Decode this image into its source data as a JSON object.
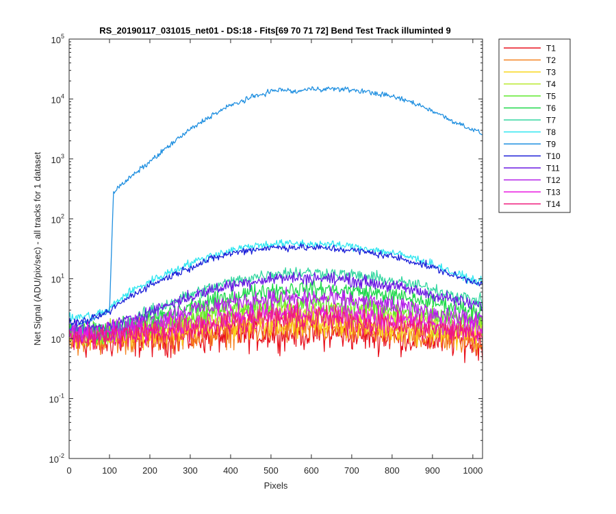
{
  "chart_data": {
    "type": "line",
    "title": "RS_20190117_031015_net01 - DS:18 - Fits[69  70  71  72]   Bend Test       Track illuminted 9",
    "xlabel": "Pixels",
    "ylabel": "Net Signal (ADU/pix/sec) - all tracks for 1 dataset",
    "xlim": [
      0,
      1024
    ],
    "ylim": [
      0.01,
      100000
    ],
    "yscale": "log",
    "x_ticks": [
      "0",
      "100",
      "200",
      "300",
      "400",
      "500",
      "600",
      "700",
      "800",
      "900",
      "1000"
    ],
    "y_ticks": [
      {
        "base": "10",
        "exp": "-2"
      },
      {
        "base": "10",
        "exp": "-1"
      },
      {
        "base": "10",
        "exp": "0"
      },
      {
        "base": "10",
        "exp": "1"
      },
      {
        "base": "10",
        "exp": "2"
      },
      {
        "base": "10",
        "exp": "3"
      },
      {
        "base": "10",
        "exp": "4"
      },
      {
        "base": "10",
        "exp": "5"
      }
    ],
    "grid": false,
    "legend_position": "outside-top-right",
    "x": [
      0,
      50,
      100,
      110,
      150,
      200,
      250,
      300,
      350,
      400,
      450,
      500,
      530,
      550,
      560,
      600,
      650,
      700,
      750,
      800,
      850,
      900,
      930,
      950,
      1000,
      1024
    ],
    "series": [
      {
        "name": "T1",
        "color": "#e8121e",
        "noise": 0.3,
        "values": [
          0.85,
          0.85,
          0.87,
          0.87,
          0.9,
          0.92,
          0.96,
          1.0,
          1.05,
          1.1,
          1.15,
          1.2,
          1.22,
          1.22,
          1.22,
          1.22,
          1.2,
          1.16,
          1.1,
          1.05,
          1.0,
          0.95,
          0.92,
          0.9,
          0.85,
          0.8
        ]
      },
      {
        "name": "T2",
        "color": "#f58220",
        "noise": 0.28,
        "values": [
          0.95,
          0.95,
          0.97,
          0.97,
          1.0,
          1.05,
          1.1,
          1.15,
          1.22,
          1.3,
          1.36,
          1.42,
          1.45,
          1.45,
          1.45,
          1.45,
          1.42,
          1.36,
          1.3,
          1.22,
          1.15,
          1.08,
          1.04,
          1.0,
          0.95,
          0.9
        ]
      },
      {
        "name": "T3",
        "color": "#f9d71c",
        "noise": 0.25,
        "values": [
          1.1,
          1.1,
          1.12,
          1.13,
          1.18,
          1.25,
          1.35,
          1.45,
          1.55,
          1.65,
          1.75,
          1.85,
          1.9,
          1.9,
          1.9,
          1.9,
          1.85,
          1.75,
          1.65,
          1.52,
          1.42,
          1.32,
          1.27,
          1.23,
          1.15,
          1.1
        ]
      },
      {
        "name": "T4",
        "color": "#b7e82a",
        "noise": 0.22,
        "values": [
          1.2,
          1.2,
          1.25,
          1.27,
          1.35,
          1.5,
          1.7,
          1.95,
          2.2,
          2.45,
          2.65,
          2.8,
          2.85,
          2.85,
          2.85,
          2.85,
          2.8,
          2.65,
          2.45,
          2.25,
          2.05,
          1.85,
          1.75,
          1.68,
          1.55,
          1.5
        ]
      },
      {
        "name": "T5",
        "color": "#5fe82d",
        "noise": 0.2,
        "values": [
          1.25,
          1.25,
          1.3,
          1.35,
          1.5,
          1.75,
          2.1,
          2.5,
          2.9,
          3.3,
          3.55,
          3.75,
          3.8,
          3.8,
          3.8,
          3.8,
          3.7,
          3.5,
          3.25,
          2.95,
          2.65,
          2.4,
          2.25,
          2.15,
          1.95,
          1.9
        ]
      },
      {
        "name": "T6",
        "color": "#1ed84a",
        "noise": 0.16,
        "values": [
          1.3,
          1.3,
          1.4,
          1.45,
          1.7,
          2.1,
          2.7,
          3.4,
          4.2,
          5.0,
          5.8,
          6.5,
          6.7,
          6.8,
          6.8,
          6.8,
          6.6,
          6.3,
          5.8,
          5.2,
          4.6,
          4.0,
          3.7,
          3.5,
          3.0,
          2.9
        ]
      },
      {
        "name": "T7",
        "color": "#33d6a0",
        "noise": 0.12,
        "values": [
          1.35,
          1.35,
          1.5,
          1.6,
          2.0,
          2.8,
          4.0,
          5.4,
          7.0,
          8.8,
          10.5,
          12.0,
          12.5,
          12.7,
          12.7,
          12.7,
          12.3,
          11.5,
          10.5,
          9.2,
          8.0,
          6.7,
          6.0,
          5.5,
          4.5,
          4.2
        ]
      },
      {
        "name": "T8",
        "color": "#2ee6f0",
        "noise": 0.08,
        "values": [
          2.2,
          2.4,
          3.0,
          3.8,
          6.0,
          9.0,
          13.0,
          18.0,
          24.0,
          30.0,
          35.0,
          38.0,
          38.5,
          38.5,
          38.5,
          38.0,
          37.0,
          34.5,
          31.0,
          27.0,
          22.5,
          17.5,
          14.5,
          12.5,
          9.5,
          8.8
        ]
      },
      {
        "name": "T9",
        "color": "#1f8fe0",
        "noise": 0.05,
        "values": [
          1.5,
          2.0,
          3.0,
          280,
          480,
          900,
          1700,
          3100,
          5200,
          7800,
          10500,
          13500,
          14300,
          13500,
          13100,
          14800,
          14800,
          14200,
          12800,
          11000,
          8800,
          6400,
          5000,
          4300,
          3100,
          2600
        ]
      },
      {
        "name": "T10",
        "color": "#1b1fd8",
        "noise": 0.07,
        "values": [
          1.8,
          2.0,
          2.8,
          3.3,
          5.0,
          7.8,
          11.0,
          15.5,
          21.0,
          26.5,
          30.5,
          33.0,
          33.5,
          33.5,
          33.5,
          33.0,
          32.0,
          30.0,
          27.0,
          23.5,
          19.5,
          15.5,
          13.0,
          11.5,
          9.0,
          8.5
        ]
      },
      {
        "name": "T11",
        "color": "#6a18e2",
        "noise": 0.12,
        "values": [
          1.4,
          1.45,
          1.6,
          1.7,
          2.1,
          2.8,
          3.8,
          5.0,
          6.4,
          7.8,
          9.0,
          10.0,
          10.3,
          10.3,
          10.3,
          10.3,
          10.0,
          9.4,
          8.5,
          7.5,
          6.5,
          5.4,
          4.9,
          4.5,
          3.7,
          3.5
        ]
      },
      {
        "name": "T12",
        "color": "#b21ee8",
        "noise": 0.18,
        "values": [
          1.3,
          1.3,
          1.35,
          1.4,
          1.6,
          1.95,
          2.4,
          2.95,
          3.5,
          4.0,
          4.4,
          4.65,
          4.7,
          4.7,
          4.7,
          4.7,
          4.55,
          4.3,
          3.95,
          3.55,
          3.15,
          2.75,
          2.55,
          2.4,
          2.1,
          2.05
        ]
      },
      {
        "name": "T13",
        "color": "#e819e0",
        "noise": 0.22,
        "values": [
          1.15,
          1.15,
          1.2,
          1.22,
          1.3,
          1.45,
          1.65,
          1.85,
          2.05,
          2.3,
          2.5,
          2.65,
          2.7,
          2.7,
          2.7,
          2.7,
          2.62,
          2.5,
          2.32,
          2.12,
          1.95,
          1.75,
          1.65,
          1.58,
          1.45,
          1.4
        ]
      },
      {
        "name": "T14",
        "color": "#f0197a",
        "noise": 0.25,
        "values": [
          1.05,
          1.05,
          1.08,
          1.1,
          1.15,
          1.25,
          1.38,
          1.52,
          1.68,
          1.85,
          2.0,
          2.1,
          2.15,
          2.15,
          2.15,
          2.15,
          2.1,
          2.0,
          1.88,
          1.72,
          1.58,
          1.45,
          1.38,
          1.33,
          1.22,
          1.18
        ]
      }
    ]
  }
}
